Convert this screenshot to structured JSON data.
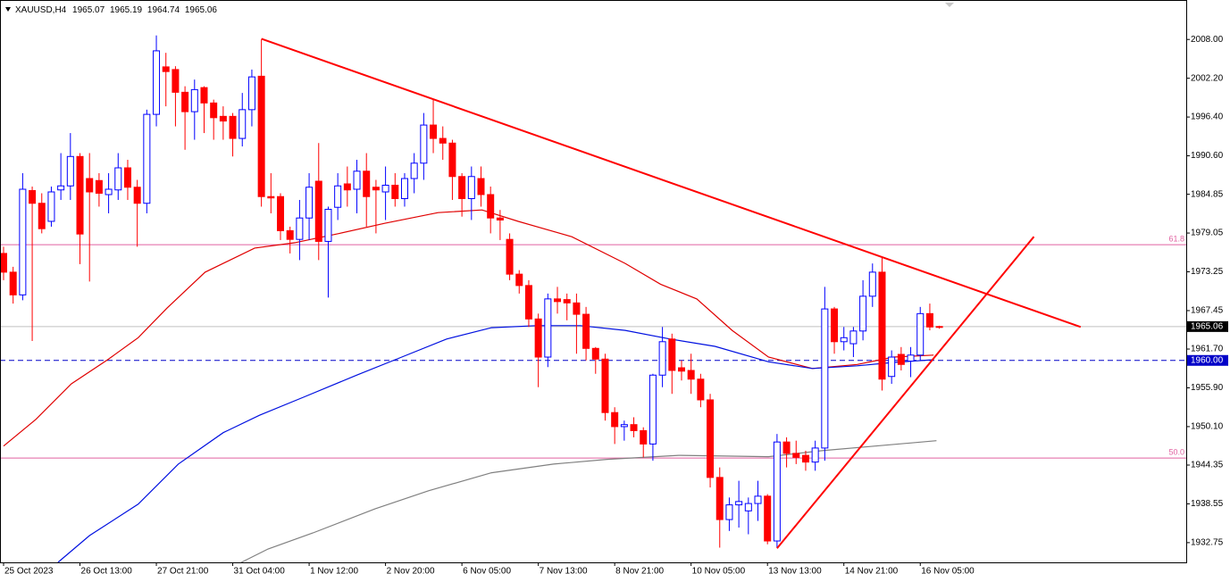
{
  "chart_data": {
    "type": "candlestick",
    "title": "XAUUSD,H4",
    "categories": [
      "25 Oct 2023",
      null,
      null,
      null,
      null,
      null,
      null,
      null,
      "26 Oct 13:00",
      null,
      null,
      null,
      null,
      null,
      null,
      null,
      "27 Oct 21:00",
      null,
      null,
      null,
      null,
      null,
      null,
      null,
      "31 Oct 04:00",
      null,
      null,
      null,
      null,
      null,
      null,
      null,
      "1 Nov 12:00",
      null,
      null,
      null,
      null,
      null,
      null,
      null,
      "2 Nov 20:00",
      null,
      null,
      null,
      null,
      null,
      null,
      null,
      "6 Nov 05:00",
      null,
      null,
      null,
      null,
      null,
      null,
      null,
      "7 Nov 13:00",
      null,
      null,
      null,
      null,
      null,
      null,
      null,
      "8 Nov 21:00",
      null,
      null,
      null,
      null,
      null,
      null,
      null,
      "10 Nov 05:00",
      null,
      null,
      null,
      null,
      null,
      null,
      null,
      "13 Nov 13:00",
      null,
      null,
      null,
      null,
      null,
      null,
      null,
      "14 Nov 21:00",
      null,
      null,
      null,
      null,
      null,
      null,
      null,
      "16 Nov 05:00",
      null,
      null
    ],
    "open": [
      1976.0,
      1973.2,
      1969.8,
      1985.4,
      1983.5,
      1980.8,
      1985.5,
      1986.1,
      1990.5,
      1987.2,
      1986.9,
      1984.8,
      1985.5,
      1988.8,
      1985.9,
      1983.5,
      1996.8,
      2003.9,
      2003.5,
      2000.1,
      1997.2,
      2000.8,
      1998.5,
      1996.5,
      1996.5,
      1993.2,
      1997.5,
      2002.5,
      1984.5,
      1984.5,
      1979.4,
      1978.1,
      1981.3,
      1986.8,
      1977.8,
      1982.9,
      1986.4,
      1985.6,
      1988.3,
      1985.9,
      1985.2,
      1986.2,
      1984.2,
      1987.2,
      1989.5,
      1995.2,
      1993.2,
      1992.5,
      1987.5,
      1984.2,
      1987.2,
      1984.8,
      1981.3,
      1978.1,
      1972.9,
      1971.2,
      1966.2,
      1960.5,
      1969.2,
      1969.1,
      1968.6,
      1966.9,
      1961.8,
      1960.2,
      1952.2,
      1950.1,
      1950.4,
      1949.5,
      1947.5,
      1957.8,
      1963.2,
      1958.9,
      1958.5,
      1957.2,
      1954.1,
      1942.5,
      1936.2,
      1938.4,
      1937.5,
      1938.6,
      1939.7,
      1933.0,
      1947.8,
      1946.1,
      1945.8,
      1944.8,
      1946.9,
      1967.7,
      1962.8,
      1962.5,
      1964.4,
      1969.6,
      1973.2,
      1957.6,
      1960.9,
      1959.9,
      1960.8,
      1967.0,
      1965.07
    ],
    "high": [
      1977,
      1974,
      1988,
      1986,
      1985,
      1986,
      1991,
      1994,
      1991,
      1991,
      1988,
      1988,
      1991,
      1990,
      1987,
      1997.5,
      2008.6,
      2006,
      2004,
      2001,
      2002,
      2001,
      1999,
      1998,
      1997,
      2000,
      2003.5,
      2008,
      1988,
      1985,
      1980,
      1984,
      1988,
      1992.5,
      1983,
      1988,
      1989,
      1990,
      1991,
      1987,
      1989,
      1988,
      1988,
      1991,
      1997,
      1999,
      1995,
      1993,
      1988,
      1989,
      1989,
      1986,
      1982.5,
      1979,
      1973.5,
      1972,
      1967,
      1970,
      1971,
      1970,
      1970,
      1968,
      1962,
      1961,
      1953,
      1951,
      1951.5,
      1950,
      1958,
      1965,
      1964,
      1960,
      1961,
      1958,
      1955,
      1944,
      1939.5,
      1942,
      1939.5,
      1942,
      1940,
      1949,
      1948.5,
      1948,
      1946.5,
      1948,
      1971,
      1968,
      1965,
      1965,
      1972,
      1974.5,
      1975.5,
      1961.5,
      1962,
      1962,
      1968,
      1968.5,
      1965.19
    ],
    "low": [
      1972,
      1968.5,
      1969,
      1962.9,
      1979,
      1980,
      1984,
      1984,
      1974.4,
      1971.8,
      1983,
      1982,
      1984,
      1984,
      1977,
      1982,
      1995,
      1998,
      1995,
      1991.5,
      1993,
      1994,
      1993,
      1993,
      1990.5,
      1992,
      1995,
      1983,
      1982,
      1978,
      1976,
      1975,
      1978,
      1975,
      1969.4,
      1981,
      1983,
      1982,
      1980,
      1979,
      1981,
      1983,
      1983,
      1985,
      1987,
      1991,
      1990,
      1984,
      1981.5,
      1981,
      1983,
      1979,
      1978,
      1972,
      1970,
      1965,
      1956,
      1959,
      1967,
      1966,
      1961,
      1960,
      1958,
      1951,
      1947.5,
      1948,
      1948.5,
      1945.5,
      1945,
      1956,
      1955,
      1957,
      1955,
      1953,
      1941,
      1932,
      1934.5,
      1935,
      1934,
      1936,
      1932.5,
      1932,
      1944,
      1944.5,
      1943.5,
      1943.5,
      1945,
      1961,
      1961.5,
      1960.5,
      1963,
      1968,
      1955.5,
      1956.5,
      1958.5,
      1957.5,
      1960,
      1964.5,
      1964.74
    ],
    "close": [
      1973.2,
      1969.8,
      1985.6,
      1983.5,
      1979.7,
      1985.2,
      1986.1,
      1990.5,
      1978.9,
      1985.2,
      1985.0,
      1985.6,
      1988.8,
      1985.9,
      1983.5,
      1996.8,
      2006.3,
      2003.2,
      2000.1,
      1997.2,
      2000.5,
      1998.5,
      1996.3,
      1995.8,
      1993.2,
      1997.5,
      2002.4,
      1984.5,
      1984.3,
      1979.4,
      1978.1,
      1981.3,
      1985.9,
      1977.8,
      1982.6,
      1986.1,
      1985.5,
      1988.3,
      1984.5,
      1985.5,
      1986.2,
      1984.2,
      1987.2,
      1989.5,
      1995.2,
      1993.2,
      1992.5,
      1987.5,
      1984.2,
      1987.5,
      1984.8,
      1981.3,
      1981.0,
      1972.9,
      1971.2,
      1966.2,
      1960.5,
      1969.2,
      1968.8,
      1968.6,
      1966.9,
      1961.8,
      1960.2,
      1952.2,
      1950.1,
      1950.4,
      1949.5,
      1947.5,
      1957.8,
      1962.8,
      1958.5,
      1958.4,
      1957.2,
      1954.1,
      1942.5,
      1936.2,
      1938.4,
      1938.9,
      1938.6,
      1939.7,
      1933.0,
      1947.8,
      1946.1,
      1945.5,
      1944.8,
      1946.9,
      1967.7,
      1962.8,
      1963.4,
      1964.4,
      1969.6,
      1973.2,
      1957.2,
      1960.5,
      1959.4,
      1960.8,
      1967.0,
      1965.0,
      1965.06
    ],
    "up_color": "#0000ff",
    "down_color": "#ff0000",
    "moving_averages": [
      {
        "color": "#e00000",
        "x": [
          0,
          3.4,
          7.1,
          10.9,
          14.1,
          17.1,
          21.1,
          26.3,
          30.5,
          35.2,
          39.9,
          45.5,
          50.1,
          53.9,
          59.5,
          65.1,
          68.8,
          72.6,
          76.3,
          80.1,
          84.7,
          89.4,
          93.2,
          97.4
        ],
        "values": [
          1947.2,
          1951.2,
          1956.5,
          1960.1,
          1963.4,
          1967.8,
          1973.2,
          1976.8,
          1977.6,
          1979.0,
          1980.5,
          1982.1,
          1982.5,
          1980.8,
          1978.5,
          1974.5,
          1971.4,
          1969.2,
          1964.5,
          1960.5,
          1958.8,
          1959.4,
          1960.5,
          1960.8
        ]
      },
      {
        "color": "#0010e0",
        "x": [
          5.7,
          9.0,
          14.1,
          18.3,
          23.0,
          26.8,
          31.4,
          37.0,
          41.7,
          46.4,
          51.1,
          55.8,
          60.4,
          65.1,
          69.8,
          74.5,
          80.1,
          84.7,
          89.4,
          93.2,
          97.4
        ],
        "values": [
          1929.8,
          1933.8,
          1938.5,
          1944.5,
          1949.2,
          1951.8,
          1954.5,
          1957.8,
          1960.5,
          1963.2,
          1964.9,
          1965.2,
          1965.2,
          1964.5,
          1963.2,
          1962.1,
          1959.8,
          1958.8,
          1959.2,
          1959.7,
          1960.1
        ]
      },
      {
        "color": "#808080",
        "x": [
          24.9,
          27.7,
          32.4,
          38.9,
          44.5,
          51.1,
          57.6,
          63.2,
          70.7,
          80.1,
          85.7,
          91.3,
          97.7
        ],
        "values": [
          1929.8,
          1931.8,
          1934.2,
          1937.8,
          1940.5,
          1943.2,
          1944.5,
          1945.2,
          1945.8,
          1945.6,
          1946.5,
          1947.2,
          1948.0
        ]
      }
    ],
    "trendlines": [
      {
        "color": "#ff0000",
        "x": [
          27.0,
          112.8
        ],
        "values": [
          2008.1,
          1965.0
        ]
      },
      {
        "color": "#ff0000",
        "x": [
          81.0,
          107.9
        ],
        "values": [
          1931.9,
          1978.5
        ]
      }
    ],
    "levels": [
      {
        "value": 1977.3,
        "label": "61.8",
        "color": "#e060a0"
      },
      {
        "value": 1945.4,
        "label": "50.0",
        "color": "#e060a0"
      }
    ],
    "marker_line": {
      "value": 1960,
      "label": "1960.00",
      "color": "#0000c8"
    },
    "ylim": [
      1929.8,
      2013.9
    ],
    "yticks": [
      {
        "value": 2008,
        "label": "2008.00"
      },
      {
        "value": 2002.2,
        "label": "2002.20"
      },
      {
        "value": 1996.4,
        "label": "1996.40"
      },
      {
        "value": 1990.6,
        "label": "1990.60"
      },
      {
        "value": 1984.85,
        "label": "1984.85"
      },
      {
        "value": 1979.05,
        "label": "1979.05"
      },
      {
        "value": 1973.25,
        "label": "1973.25"
      },
      {
        "value": 1967.45,
        "label": "1967.45"
      },
      {
        "value": 1961.7,
        "label": "1961.70"
      },
      {
        "value": 1955.9,
        "label": "1955.90"
      },
      {
        "value": 1950.1,
        "label": "1950.10"
      },
      {
        "value": 1944.35,
        "label": "1944.35"
      },
      {
        "value": 1938.55,
        "label": "1938.55"
      },
      {
        "value": 1932.75,
        "label": "1932.75"
      }
    ]
  }
}
